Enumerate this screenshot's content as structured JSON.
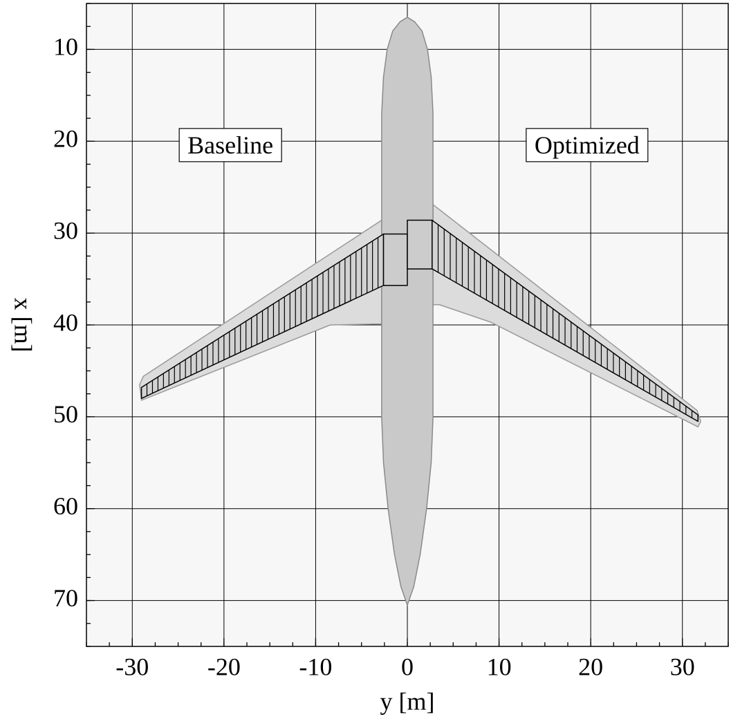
{
  "chart_data": {
    "type": "planform",
    "x_label": "y [m]",
    "y_label": "x [m]",
    "xlim": [
      -35,
      35
    ],
    "xticks": [
      -30,
      -20,
      -10,
      0,
      10,
      20,
      30
    ],
    "ylim": [
      75,
      5
    ],
    "yticks": [
      10,
      20,
      30,
      40,
      50,
      60,
      70
    ],
    "minor_step": 2.5,
    "grid": true,
    "background": "#f7f7f7",
    "annotations": [
      {
        "text": "Baseline",
        "x": -19.3,
        "y": 20.7
      },
      {
        "text": "Optimized",
        "x": 19.6,
        "y": 20.7
      }
    ],
    "shapes": [
      {
        "color": "#dcdcdc",
        "stroke": "#9a9a9a",
        "x": [
          -2.8,
          -28.8,
          -29.2,
          -29,
          -8.4,
          -3.3,
          -2.8
        ],
        "y": [
          28.6,
          45.6,
          46.5,
          48.2,
          40,
          39.9,
          39.9
        ]
      },
      {
        "color": "#dcdcdc",
        "stroke": "#9a9a9a",
        "x": [
          2.8,
          31.6,
          32,
          31.7,
          9.1,
          3.5,
          2.8
        ],
        "y": [
          26.9,
          49.3,
          50.5,
          51.1,
          39.7,
          37.8,
          37.8
        ]
      },
      {
        "color": "#c9c9c9",
        "stroke": "#8a8a8a",
        "x": [
          0,
          0.8,
          1.6,
          2.2,
          2.6,
          2.8,
          2.8,
          2.6,
          2.1,
          1.4,
          0.7,
          0,
          -0.7,
          -1.4,
          -2.1,
          -2.6,
          -2.8,
          -2.8,
          -2.6,
          -2.2,
          -1.6,
          -0.8
        ],
        "y": [
          6.5,
          7,
          8,
          10,
          13,
          17,
          50,
          55,
          60,
          65,
          68.5,
          70.5,
          68.5,
          65,
          60,
          55,
          50,
          17,
          13,
          10,
          8,
          7
        ]
      },
      {
        "color": "#d2d2d2",
        "stroke": "#000000",
        "x": [
          -2.6,
          -29,
          -29,
          -2.6
        ],
        "y": [
          30.1,
          46.8,
          48,
          35.7
        ]
      },
      {
        "color": "#d2d2d2",
        "stroke": "#000000",
        "x": [
          2.7,
          31.7,
          31.7,
          2.7
        ],
        "y": [
          28.6,
          49.8,
          50.5,
          33.9
        ]
      },
      {
        "color": "#cccccc",
        "stroke": "#000000",
        "x": [
          -2.6,
          0,
          0,
          -2.6
        ],
        "y": [
          30.1,
          30.1,
          35.7,
          35.7
        ]
      },
      {
        "color": "#cccccc",
        "stroke": "#000000",
        "x": [
          0,
          2.7,
          2.7,
          0
        ],
        "y": [
          28.6,
          28.6,
          33.9,
          33.9
        ]
      }
    ]
  }
}
